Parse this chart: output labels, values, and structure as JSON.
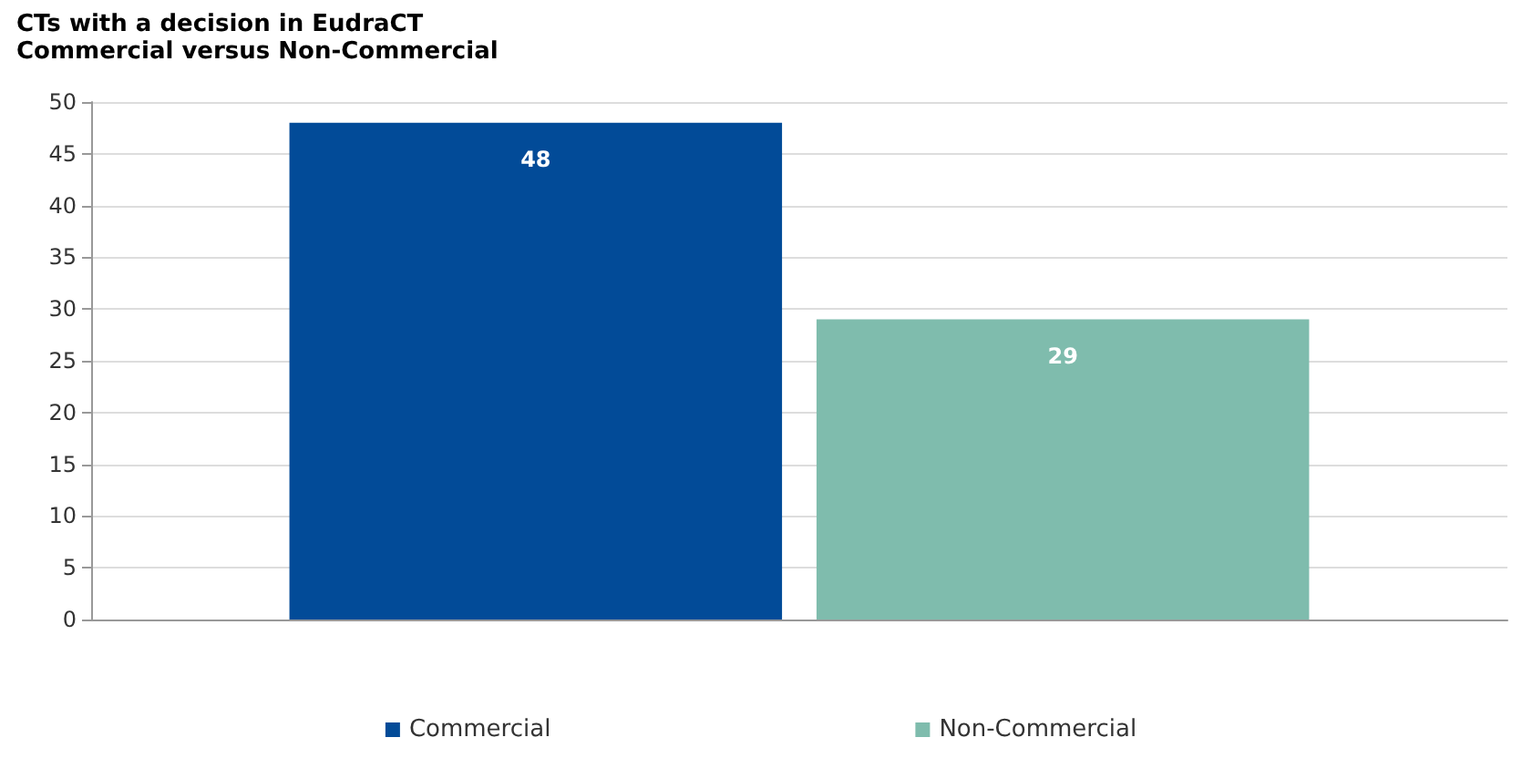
{
  "chart_data": {
    "type": "bar",
    "title": "CTs with a decision in EudraCT",
    "subtitle": "Commercial versus Non-Commercial",
    "categories": [
      null
    ],
    "series": [
      {
        "name": "Commercial",
        "color": "#024b98",
        "values": [
          48
        ]
      },
      {
        "name": "Non-Commercial",
        "color": "#7fbcad",
        "values": [
          29
        ]
      }
    ],
    "ylim": [
      0,
      50
    ],
    "yticks": [
      0,
      5,
      10,
      15,
      20,
      25,
      30,
      35,
      40,
      45,
      50
    ],
    "grid": "y",
    "legend": "bottom",
    "data_labels": true
  }
}
